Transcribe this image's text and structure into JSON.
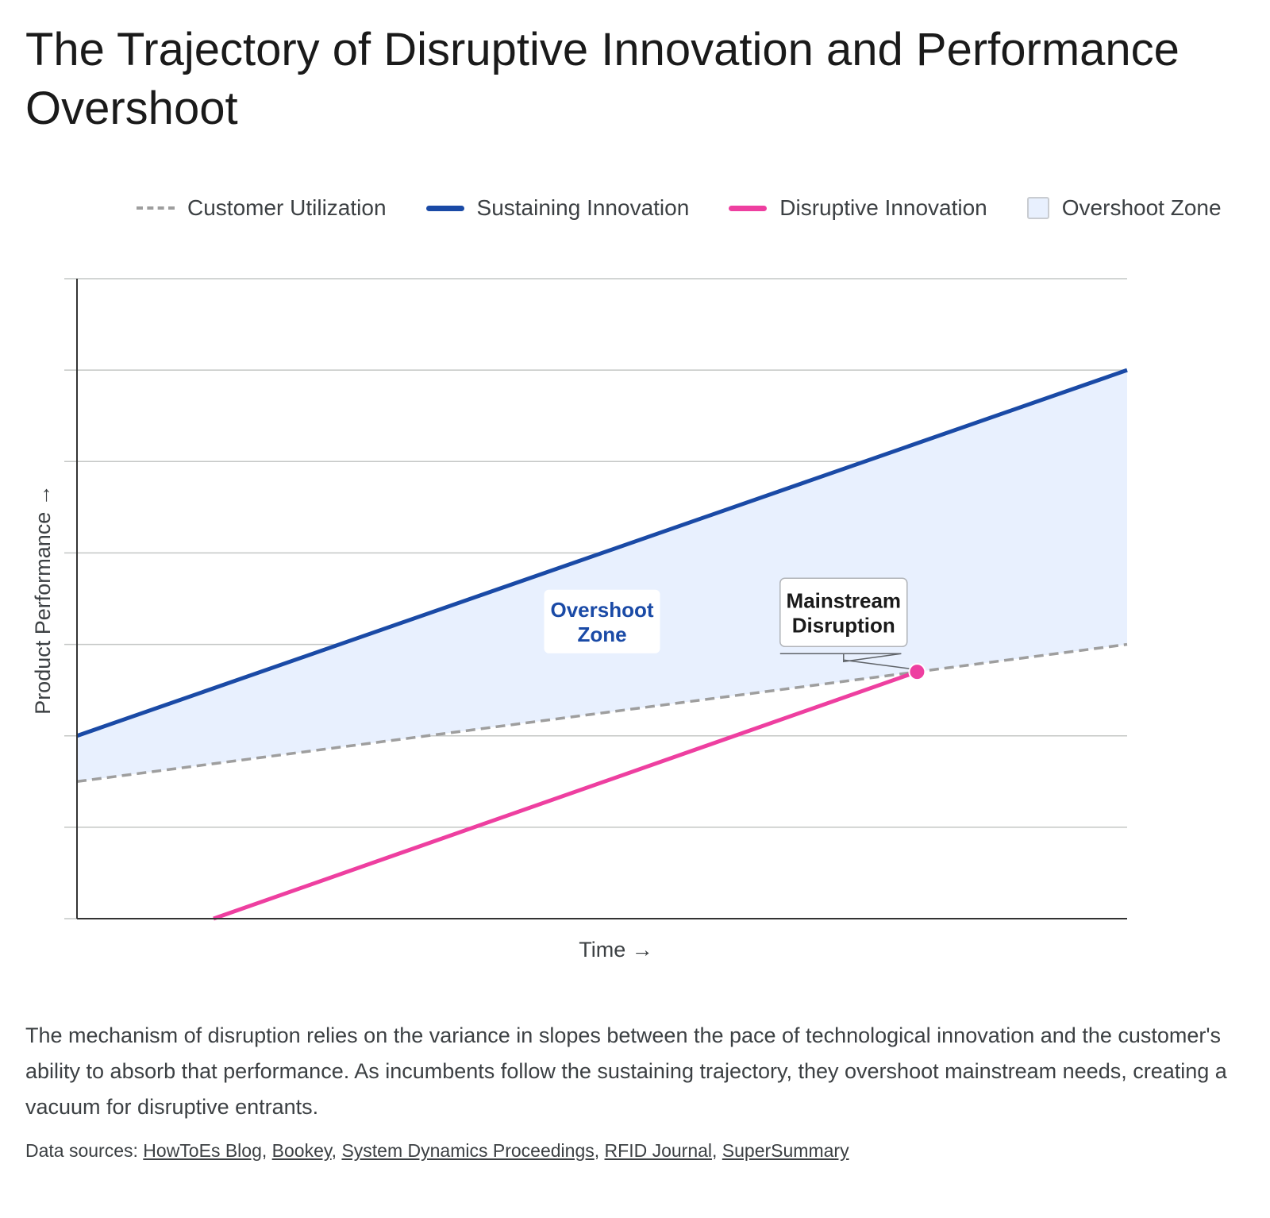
{
  "page": {
    "title": "The Trajectory of Disruptive Innovation and Performance Overshoot",
    "description": "The mechanism of disruption relies on the variance in slopes between the pace of technological innovation and the customer's ability to absorb that performance. As incumbents follow the sustaining trajectory, they overshoot mainstream needs, creating a vacuum for disruptive entrants.",
    "sources_prefix": "Data sources:",
    "sources": [
      "HowToEs Blog",
      "Bookey",
      "System Dynamics Proceedings",
      "RFID Journal",
      "SuperSummary"
    ]
  },
  "chart_data": {
    "type": "line",
    "title": "The Trajectory of Disruptive Innovation and Performance Overshoot",
    "xlabel": "Time →",
    "ylabel": "Product Performance →",
    "xlim": [
      0,
      100
    ],
    "ylim": [
      0,
      7
    ],
    "grid": true,
    "legend_position": "top",
    "legend": [
      {
        "label": "Customer Utilization",
        "style": "dashed",
        "color": "#9e9e9e"
      },
      {
        "label": "Sustaining Innovation",
        "style": "solid",
        "color": "#1a4aa6"
      },
      {
        "label": "Disruptive Innovation",
        "style": "solid",
        "color": "#ee3fa0"
      },
      {
        "label": "Overshoot Zone",
        "style": "area",
        "color": "#e8f0fe"
      }
    ],
    "series": [
      {
        "name": "Customer Utilization",
        "x": [
          0,
          100
        ],
        "y": [
          1.5,
          3.0
        ],
        "color": "#9e9e9e",
        "dashed": true
      },
      {
        "name": "Sustaining Innovation",
        "x": [
          0,
          100
        ],
        "y": [
          2.0,
          6.0
        ],
        "color": "#1a4aa6"
      },
      {
        "name": "Disruptive Innovation",
        "x": [
          13,
          80
        ],
        "y": [
          0.0,
          2.7
        ],
        "color": "#ee3fa0",
        "end_marker": true
      }
    ],
    "area": {
      "name": "Overshoot Zone",
      "between": [
        "Customer Utilization",
        "Sustaining Innovation"
      ],
      "color": "#e8f0fe"
    },
    "annotations": [
      {
        "text": "Overshoot Zone",
        "lines": [
          "Overshoot",
          "Zone"
        ],
        "x": 50,
        "y": 3.25,
        "color": "#1a4aa6",
        "boxed": false
      },
      {
        "text": "Mainstream Disruption",
        "lines": [
          "Mainstream",
          "Disruption"
        ],
        "x": 73,
        "y": 3.35,
        "color": "#1a1a1a",
        "boxed": true,
        "target": [
          80,
          2.7
        ]
      }
    ]
  }
}
